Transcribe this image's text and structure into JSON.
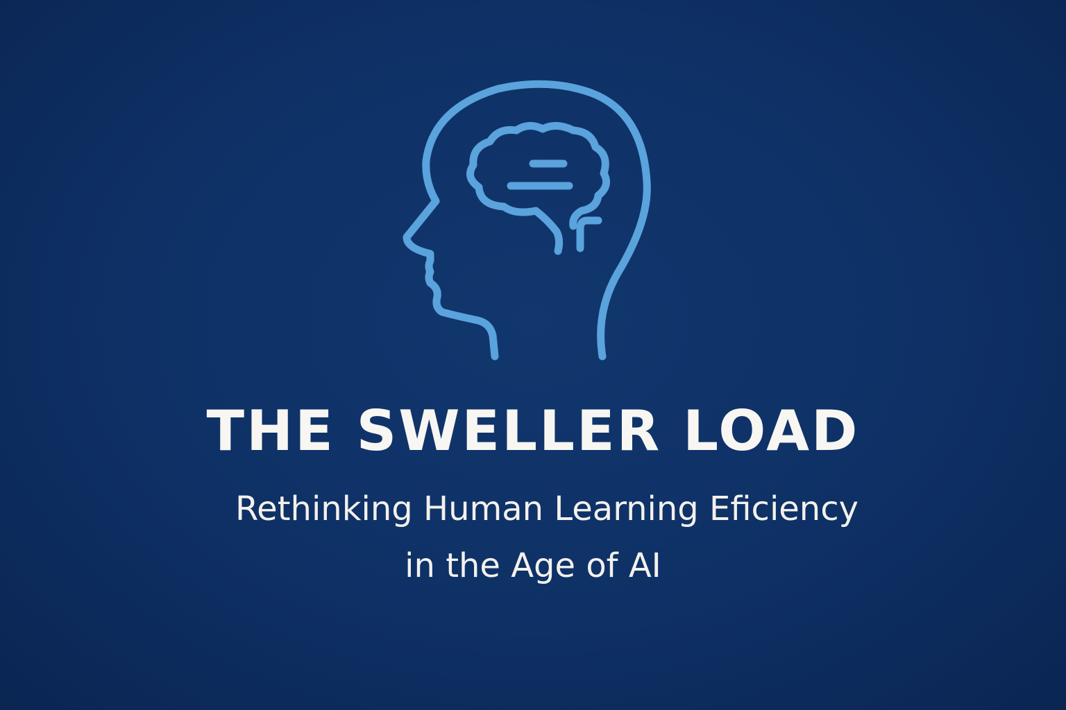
{
  "brand": {
    "logo_icon": "head-brain-icon",
    "accent_color": "#5aa3dc",
    "background_color": "#0f3166"
  },
  "title": "THE SWELLER LOAD",
  "subtitle": {
    "line1": "Rethinking Human Learning Eficiency",
    "line2": "in the Age of AI"
  }
}
